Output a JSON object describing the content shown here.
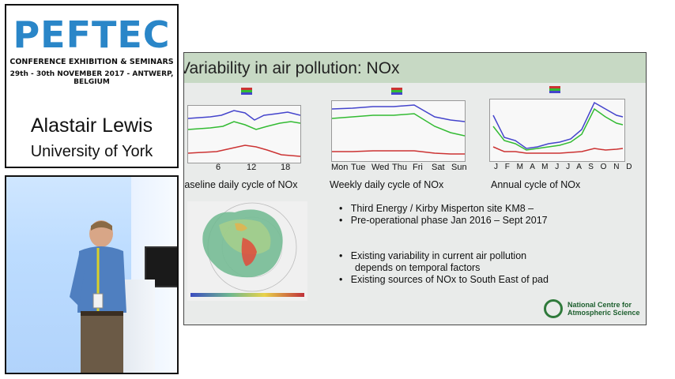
{
  "branding": {
    "logo": "PEFTEC",
    "conference_line": "CONFERENCE EXHIBITION & SEMINARS",
    "date_line": "29th - 30th NOVEMBER 2017 - ANTWERP, BELGIUM",
    "speaker_name": "Alastair Lewis",
    "affiliation": "University of York"
  },
  "slide": {
    "title": "Variability in air pollution: NOx",
    "diurnal": {
      "x_ticks": [
        "6",
        "12",
        "18"
      ],
      "caption": "Baseline daily cycle of NOx"
    },
    "weekly": {
      "x_ticks": [
        "Mon",
        "Tue",
        "Wed",
        "Thu",
        "Fri",
        "Sat",
        "Sun"
      ],
      "caption": "Weekly daily cycle of NOx"
    },
    "annual": {
      "x_ticks": [
        "J",
        "F",
        "M",
        "A",
        "M",
        "J",
        "J",
        "A",
        "S",
        "O",
        "N",
        "D"
      ],
      "caption": "Annual cycle of NOx"
    },
    "bullets_top": [
      "Third Energy / Kirby Misperton site KM8 –",
      "Pre-operational phase Jan 2016 – Sept 2017"
    ],
    "bullets_bottom": [
      "Existing variability in current air pollution",
      "depends on temporal factors",
      "Existing sources of NOx to South East of pad"
    ],
    "ncas": {
      "line1": "National Centre for",
      "line2": "Atmospheric Science"
    }
  },
  "colors": {
    "logo_blue": "#2a86c8",
    "title_bar": "#c7d9c4",
    "series_blue": "#4444cc",
    "series_green": "#33bb33",
    "series_red": "#cc3333",
    "ncas_green": "#2f7a3b"
  }
}
